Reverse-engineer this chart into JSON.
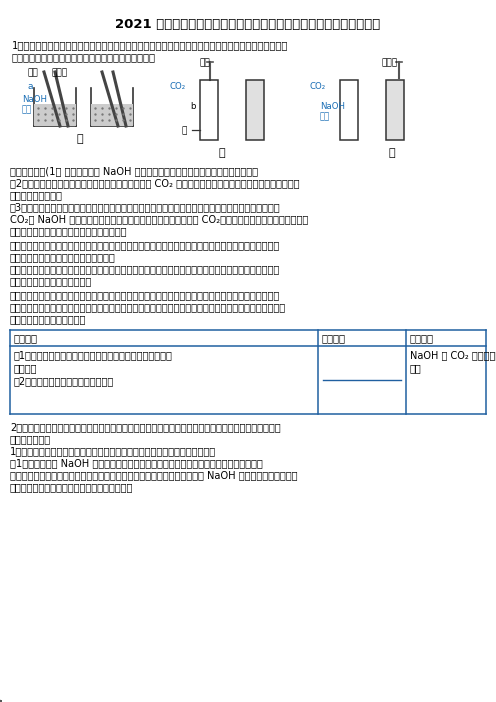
{
  "title": "2021 年中考化学热点题型《氮氧化钓与二氧化碳反应探究》强化训练",
  "bg_color": "#ffffff",
  "text_color": "#000000",
  "body_line1": "1、某化学兴趣小组的同学发现：许多无明显现象的化学反应，可通过滴加其他试剂的方法使之产生明显",
  "body_line2": "的现象，以证明反应的发生。他们做了以下三个实验：",
  "analysis_1": "》现象分析》(1） 甲实验中表明 NaOH 溶液与稀盐酸发生了反应的现象是＿＿＿＿＿。",
  "analysis_2": "（2）乙实验中观察到石蕊溶液由紫色变为红色，说明 CO₂ 能与水反应生成＿＿＿（填「酸性」、「碱性」",
  "analysis_3": "或「中性」）物质。",
  "analysis_4": "（3）丙实验滴入稀盐酸后，观察到溶液中有气泡冒出，写出产生气泡的化学方程式＿＿＿，此现象说明",
  "analysis_5": "CO₂与 NaOH 溶液能发生反应。同学们经过讨论，一致认为通入 CO₂后的溶液中滴入＿＿＿＿溶液，观",
  "analysis_6": "察到有白色沉淠生成，也可以得出相同结论。",
  "discuss_1": "》交流讨论》由上述实验得知，实验乙是通过检验有新物质生成证明反应发生，与乙采用了相同原理的还",
  "discuss_2": "有实验＿＿＿＿（填「甲」或「丙」）。",
  "discuss_3": "》归纳结论》对于无明显现象的化学实验，既可以通过检验有新物质生成证明反应的发生，也可以通过证",
  "discuss_4": "明＿＿＿＿来证明反应的发生。",
  "ext_1": "》拓展迁移》小明查阅资料获知，氮氧化钓与酒精不发生化学反应，但能溢于酒精形成无色透明溶液，氮",
  "ext_2": "氧化钓的酒精溶液与氮氧化钓的水溶液化学性质相似，碳酸钓不与酒精反应也不溢于酒精。根据上述信息，",
  "ext_3": "请你帮助小明完成下列实验。",
  "tbl_h0": "实验操作",
  "tbl_h1": "实验现象",
  "tbl_h2": "实验结论",
  "tbl_r1c0a": "（1）取一定量的氮氧化钓固体于烧杯中，向其加入适量的酒",
  "tbl_r1c0b": "精溶液；",
  "tbl_r1c0c": "（2）向上述溶液中通入二氧化碳气体",
  "tbl_r1c2a": "NaOH 与 CO₂ 能发生化学",
  "tbl_r1c2b": "反应",
  "part2_1": "2、某化学兴趣小组在自的酸、碱、盐化学性质时，发现有些实验无法观察到明显现象，需要进行改进或",
  "part2_2": "继续实验验证。",
  "part2_3": "1、兴趣小组小夏同学提出，酸、碱中和没有明显现象，并设计如下两个实验：",
  "part2_4": "（1）实验一：向 NaOH 溶液中先滴入几滴酚酮溶液，振荡，再滴入稀硫酸，观察到溶液由",
  "part2_5": "＿＿＿色变为无色，说明碱与酸发生反应。在上述试管中再逐滴滴入过量的 NaOH 溶液，不断振荡，如果",
  "part2_6": "观察到＿＿＿＿＿＿，证明了加的稀硫酸过量。"
}
